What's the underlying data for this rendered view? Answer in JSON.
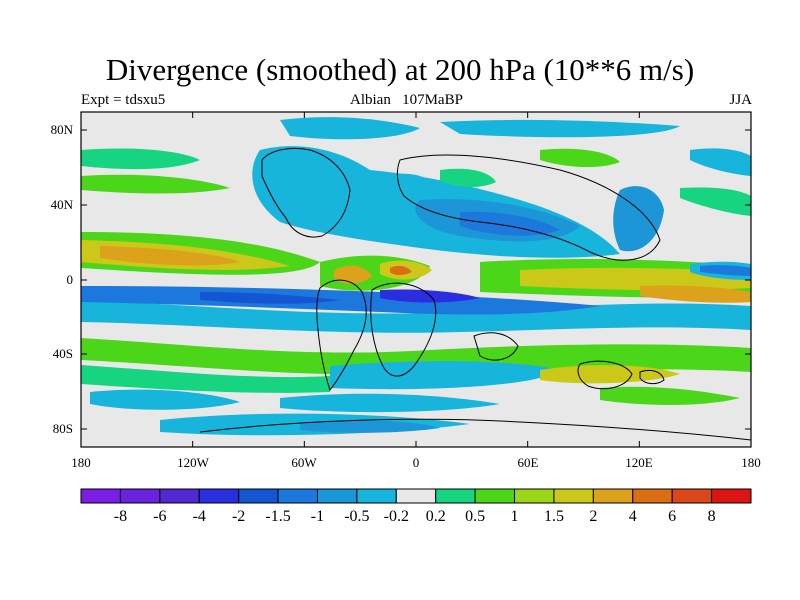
{
  "title": "Divergence (smoothed) at 200 hPa (10**6 m/s)",
  "left_label": "Expt = tdsxu5",
  "center_label": "Albian   107MaBP",
  "right_label": "JJA",
  "lat_ticks": [
    "80N",
    "40N",
    "0",
    "40S",
    "80S"
  ],
  "lon_ticks": [
    "180",
    "120W",
    "60W",
    "0",
    "60E",
    "120E",
    "180"
  ],
  "colorbar": {
    "colors": [
      "#7b1ee6",
      "#6a22dc",
      "#5028d2",
      "#2a2ee0",
      "#1455d2",
      "#1c78dc",
      "#1c96d6",
      "#17b4dc",
      "#e8e8e8",
      "#16d480",
      "#4cd619",
      "#9cd617",
      "#ccc81a",
      "#dca21c",
      "#dc6e12",
      "#dc4618",
      "#dc1414"
    ],
    "labels": [
      "-8",
      "-6",
      "-4",
      "-2",
      "-1.5",
      "-1",
      "-0.5",
      "-0.2",
      "0.2",
      "0.5",
      "1",
      "1.5",
      "2",
      "4",
      "6",
      "8"
    ]
  }
}
